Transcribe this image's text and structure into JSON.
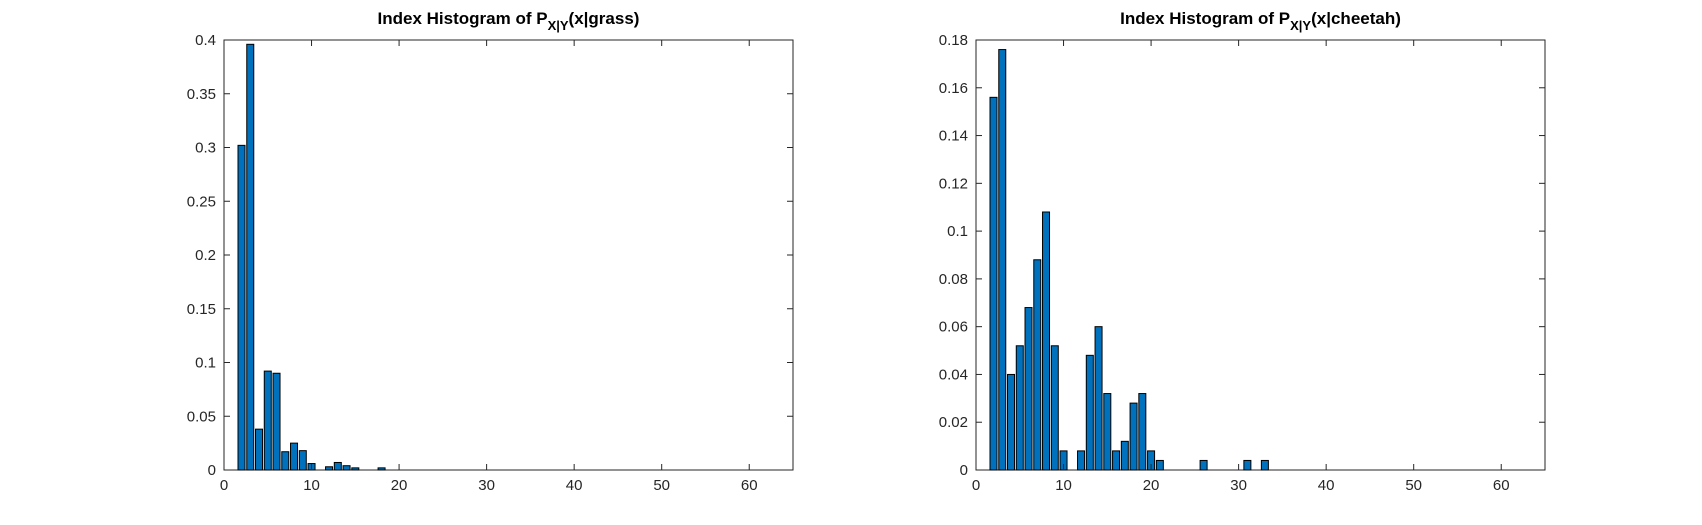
{
  "chart_data": [
    {
      "type": "bar",
      "title": {
        "prefix": "Index Histogram of P",
        "subscript": "X|Y",
        "suffix": "(x|grass)"
      },
      "xlabel": "",
      "ylabel": "",
      "xlim": [
        0,
        65
      ],
      "ylim": [
        0,
        0.4
      ],
      "xticks": [
        0,
        10,
        20,
        30,
        40,
        50,
        60
      ],
      "yticks": [
        0,
        0.05,
        0.1,
        0.15,
        0.2,
        0.25,
        0.3,
        0.35,
        0.4
      ],
      "ytick_labels": [
        "0",
        "0.05",
        "0.1",
        "0.15",
        "0.2",
        "0.25",
        "0.3",
        "0.35",
        "0.4"
      ],
      "grid": false,
      "bar_color": "#0072BD",
      "x": [
        1,
        2,
        3,
        4,
        5,
        6,
        7,
        8,
        9,
        10,
        11,
        12,
        13,
        14,
        15,
        16,
        17,
        18,
        19,
        20,
        21,
        22,
        23,
        24,
        25,
        26,
        27,
        28,
        29,
        30,
        31,
        32,
        33,
        34,
        35,
        36,
        37,
        38,
        39,
        40,
        41,
        42,
        43,
        44,
        45,
        46,
        47,
        48,
        49,
        50,
        51,
        52,
        53,
        54,
        55,
        56,
        57,
        58,
        59,
        60,
        61,
        62,
        63,
        64
      ],
      "values": [
        0,
        0.302,
        0.396,
        0.038,
        0.092,
        0.09,
        0.017,
        0.025,
        0.018,
        0.006,
        0,
        0.003,
        0.007,
        0.004,
        0.002,
        0,
        0,
        0.002,
        0,
        0,
        0,
        0,
        0,
        0,
        0,
        0,
        0,
        0,
        0,
        0,
        0,
        0,
        0,
        0,
        0,
        0,
        0,
        0,
        0,
        0,
        0,
        0,
        0,
        0,
        0,
        0,
        0,
        0,
        0,
        0,
        0,
        0,
        0,
        0,
        0,
        0,
        0,
        0,
        0,
        0,
        0,
        0,
        0,
        0
      ]
    },
    {
      "type": "bar",
      "title": {
        "prefix": "Index Histogram of P",
        "subscript": "X|Y",
        "suffix": "(x|cheetah)"
      },
      "xlabel": "",
      "ylabel": "",
      "xlim": [
        0,
        65
      ],
      "ylim": [
        0,
        0.18
      ],
      "xticks": [
        0,
        10,
        20,
        30,
        40,
        50,
        60
      ],
      "yticks": [
        0,
        0.02,
        0.04,
        0.06,
        0.08,
        0.1,
        0.12,
        0.14,
        0.16,
        0.18
      ],
      "ytick_labels": [
        "0",
        "0.02",
        "0.04",
        "0.06",
        "0.08",
        "0.1",
        "0.12",
        "0.14",
        "0.16",
        "0.18"
      ],
      "grid": false,
      "bar_color": "#0072BD",
      "x": [
        1,
        2,
        3,
        4,
        5,
        6,
        7,
        8,
        9,
        10,
        11,
        12,
        13,
        14,
        15,
        16,
        17,
        18,
        19,
        20,
        21,
        22,
        23,
        24,
        25,
        26,
        27,
        28,
        29,
        30,
        31,
        32,
        33,
        34,
        35,
        36,
        37,
        38,
        39,
        40,
        41,
        42,
        43,
        44,
        45,
        46,
        47,
        48,
        49,
        50,
        51,
        52,
        53,
        54,
        55,
        56,
        57,
        58,
        59,
        60,
        61,
        62,
        63,
        64
      ],
      "values": [
        0,
        0.156,
        0.176,
        0.04,
        0.052,
        0.068,
        0.088,
        0.108,
        0.052,
        0.008,
        0,
        0.008,
        0.048,
        0.06,
        0.032,
        0.008,
        0.012,
        0.028,
        0.032,
        0.008,
        0.004,
        0,
        0,
        0,
        0,
        0.004,
        0,
        0,
        0,
        0,
        0.004,
        0,
        0.004,
        0,
        0,
        0,
        0,
        0,
        0,
        0,
        0,
        0,
        0,
        0,
        0,
        0,
        0,
        0,
        0,
        0,
        0,
        0,
        0,
        0,
        0,
        0,
        0,
        0,
        0,
        0,
        0,
        0,
        0,
        0
      ]
    }
  ]
}
